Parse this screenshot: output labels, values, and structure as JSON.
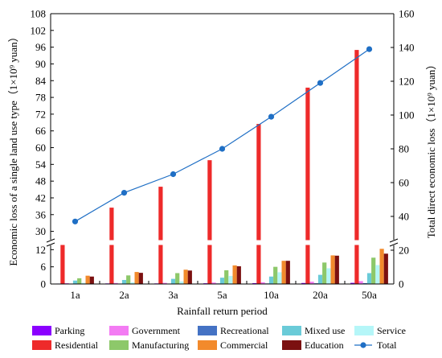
{
  "chart_data": {
    "type": "bar",
    "categories": [
      "1a",
      "2a",
      "3a",
      "5a",
      "10a",
      "20a",
      "50a"
    ],
    "xlabel": "Rainfall return period",
    "ylabel_left": "Economic loss of a single land use type（1×10⁹ yuan）",
    "ylabel_right": "Total direct economic loss（1×10⁹ yuan）",
    "y_left_lower_ticks": [
      "0",
      "6",
      "12"
    ],
    "y_left_upper_ticks": [
      "30",
      "36",
      "42",
      "48",
      "54",
      "60",
      "66",
      "72",
      "78",
      "84",
      "90",
      "96",
      "102",
      "108"
    ],
    "y_right_ticks": [
      "0",
      "20",
      "40",
      "60",
      "80",
      "100",
      "120",
      "140",
      "160"
    ],
    "axis_break": {
      "lower_max": 13.5,
      "upper_min": 27,
      "upper_max": 108
    },
    "y_right_range": [
      0,
      160
    ],
    "series": [
      {
        "name": "Parking",
        "color": "#8B00FF",
        "values": [
          0.15,
          0.2,
          0.2,
          0.25,
          0.3,
          0.35,
          0.4
        ]
      },
      {
        "name": "Residential",
        "color": "#EE2A2A",
        "values": [
          26.5,
          38.5,
          46,
          55.5,
          68.5,
          81.5,
          95
        ]
      },
      {
        "name": "Government",
        "color": "#F37BF3",
        "values": [
          0.3,
          0.35,
          0.4,
          0.5,
          0.6,
          0.8,
          1.0
        ]
      },
      {
        "name": "Manufacturing",
        "color": "#8DC86A",
        "values": [
          2.0,
          3.0,
          3.8,
          4.8,
          6.0,
          7.5,
          9.2
        ]
      },
      {
        "name": "Recreational",
        "color": "#4472C4",
        "values": [
          0.1,
          0.15,
          0.15,
          0.2,
          0.2,
          0.25,
          0.3
        ]
      },
      {
        "name": "Commercial",
        "color": "#F28A2C",
        "values": [
          2.9,
          4.2,
          5.0,
          6.5,
          8.1,
          10.0,
          12.3
        ]
      },
      {
        "name": "Mixed use",
        "color": "#6ACBD8",
        "values": [
          1.2,
          1.4,
          1.8,
          2.2,
          2.6,
          3.2,
          3.8
        ]
      },
      {
        "name": "Education",
        "color": "#7B1010",
        "values": [
          2.6,
          3.9,
          4.7,
          6.2,
          8.1,
          9.9,
          10.6
        ]
      },
      {
        "name": "Service",
        "color": "#B5F6F8",
        "values": [
          0.4,
          0.6,
          0.9,
          2.8,
          4.1,
          5.5,
          6.6
        ]
      }
    ],
    "total": {
      "name": "Total",
      "color": "#1F6FC5",
      "values": [
        37,
        54,
        65,
        80,
        99,
        119,
        139
      ]
    },
    "legend_order": [
      "Parking",
      "Government",
      "Recreational",
      "Mixed use",
      "Service",
      "Residential",
      "Manufacturing",
      "Commercial",
      "Education",
      "Total"
    ],
    "bar_order": [
      "Parking",
      "Residential",
      "Government",
      "Recreational",
      "Mixed use",
      "Manufacturing",
      "Service",
      "Commercial",
      "Education"
    ],
    "grid": false,
    "legend_position": "bottom"
  }
}
